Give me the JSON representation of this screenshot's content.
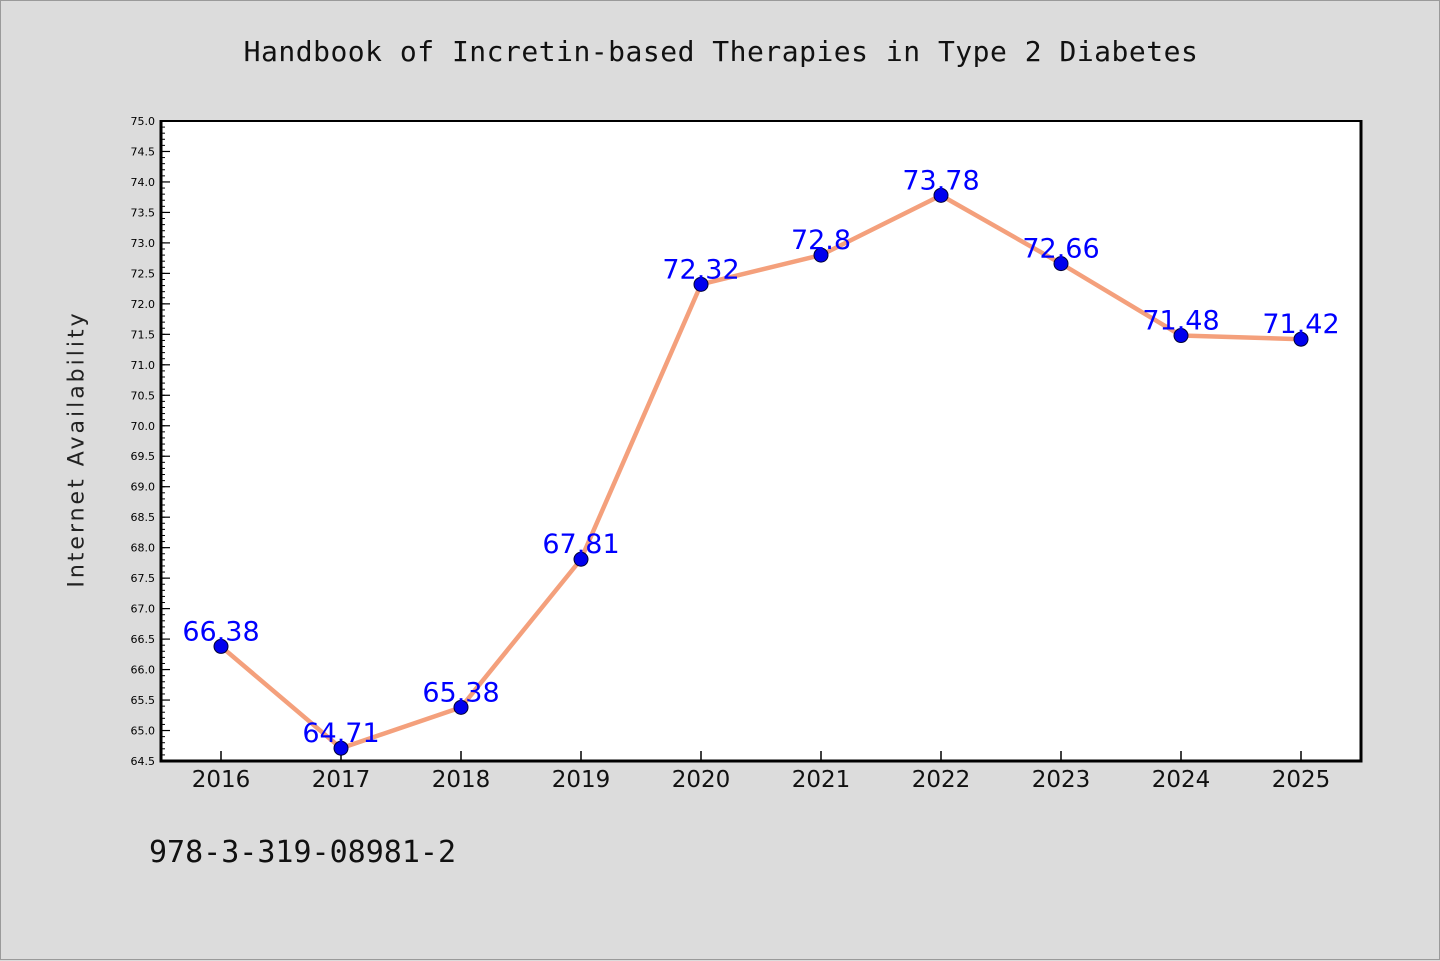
{
  "page": {
    "background": "#dcdcdc",
    "footer_text": "978-3-319-08981-2"
  },
  "chart_data": {
    "type": "line",
    "title": "Handbook of Incretin-based Therapies in Type 2 Diabetes",
    "xlabel": "",
    "ylabel": "Internet Availability",
    "categories": [
      "2016",
      "2017",
      "2018",
      "2019",
      "2020",
      "2021",
      "2022",
      "2023",
      "2024",
      "2025"
    ],
    "series": [
      {
        "values": [
          66.38,
          64.71,
          65.38,
          67.81,
          72.32,
          72.8,
          73.78,
          72.66,
          71.48,
          71.42
        ],
        "labels": [
          "66.38",
          "64.71",
          "65.38",
          "67.81",
          "72.32",
          "72.8",
          "73.78",
          "72.66",
          "71.48",
          "71.42"
        ],
        "line_color": "#f4a07c",
        "marker_color": "#0000ee",
        "label_color": "#0000ff"
      }
    ],
    "ylim": [
      64.5,
      75.0
    ],
    "yticks": [
      "64.5",
      "65.0",
      "65.5",
      "66.0",
      "66.5",
      "67.0",
      "67.5",
      "68.0",
      "68.5",
      "69.0",
      "69.5",
      "70.0",
      "70.5",
      "71.0",
      "71.5",
      "72.0",
      "72.5",
      "73.0",
      "73.5",
      "74.0",
      "74.5",
      "75.0"
    ],
    "grid": false,
    "legend": "none",
    "plot_background": "#ffffff"
  }
}
